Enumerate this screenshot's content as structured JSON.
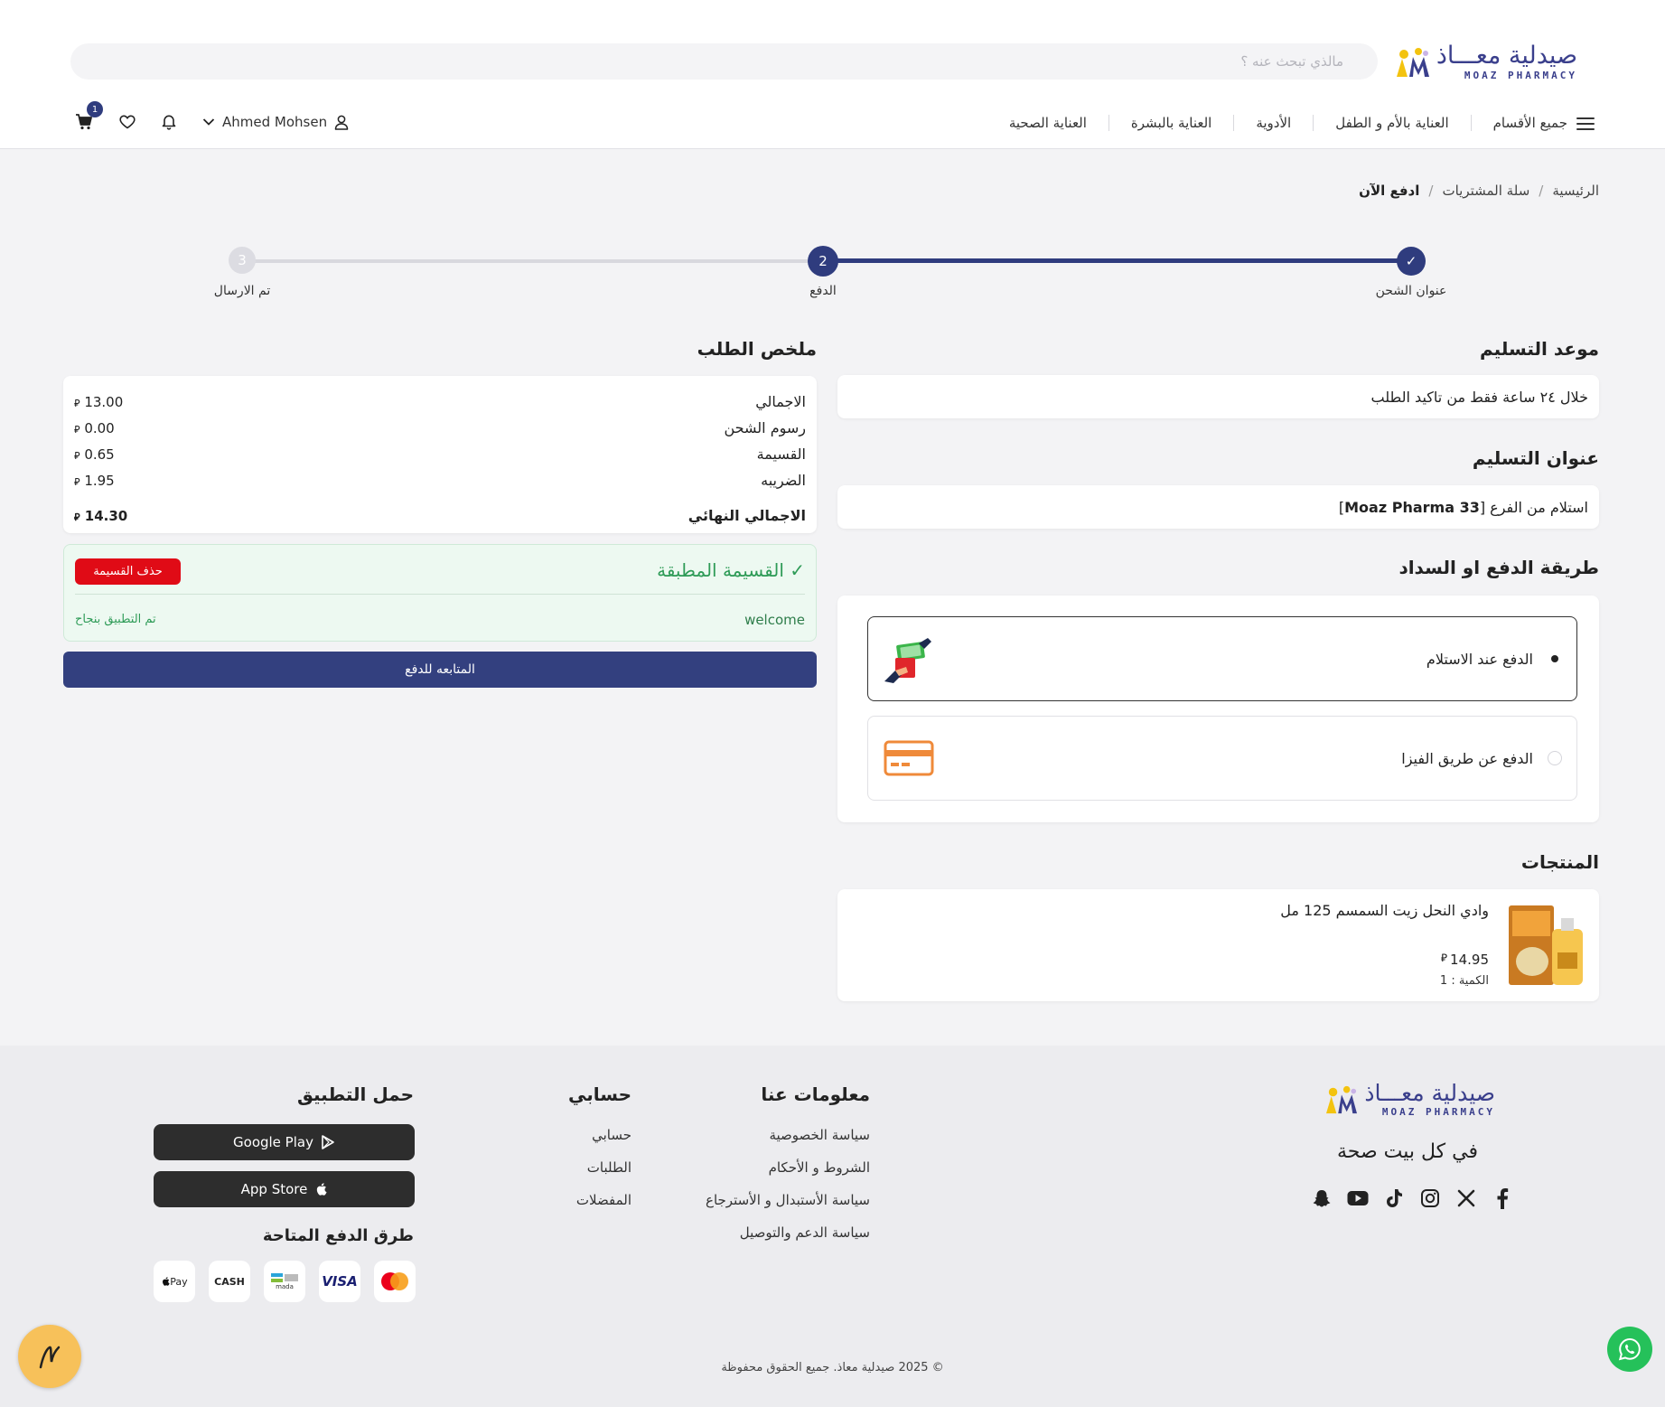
{
  "header": {
    "logo_ar": "صيدلية معـــاذ",
    "logo_en": "MOAZ PHARMACY",
    "search_placeholder": "مالذي تبحث عنه ؟",
    "nav": [
      "جميع الأقسام",
      "العناية بالأم و الطفل",
      "الأدوية",
      "العناية بالبشرة",
      "العناية الصحية"
    ],
    "user_name": "Ahmed Mohsen",
    "cart_count": "1"
  },
  "breadcrumb": [
    "الرئيسية",
    "سلة المشتريات",
    "ادفع الآن"
  ],
  "breadcrumb_sep": "/",
  "stepper": {
    "steps": [
      {
        "label": "عنوان الشحن",
        "marker": "✓",
        "state": "done"
      },
      {
        "label": "الدفع",
        "marker": "2",
        "state": "active"
      },
      {
        "label": "تم الارسال",
        "marker": "3",
        "state": "pending"
      }
    ]
  },
  "delivery_time": {
    "title": "موعد التسليم",
    "text": "خلال ٢٤ ساعة فقط من تاكيد الطلب"
  },
  "delivery_address": {
    "title": "عنوان التسليم",
    "text_prefix": "استلام من الفرع [",
    "branch": "Moaz Pharma 33",
    "text_suffix": "]"
  },
  "payment": {
    "title": "طريقة الدفع او السداد",
    "options": [
      {
        "label": "الدفع عند الاستلام",
        "selected": true,
        "icon": "cash-hand-icon"
      },
      {
        "label": "الدفع عن طريق الفيزا",
        "selected": false,
        "icon": "credit-card-icon"
      }
    ]
  },
  "products": {
    "title": "المنتجات",
    "items": [
      {
        "name": "وادي النحل زيت السمسم 125 مل",
        "price": "14.95",
        "qty_label": "الكمية : 1"
      }
    ]
  },
  "currency_symbol": "⃁",
  "summary": {
    "title": "ملخص الطلب",
    "rows": [
      {
        "label": "الاجمالي",
        "value": "13.00"
      },
      {
        "label": "رسوم الشحن",
        "value": "0.00"
      },
      {
        "label": "القسيمة",
        "value": "0.65"
      },
      {
        "label": "الضريبه",
        "value": "1.95"
      }
    ],
    "total_label": "الاجمالي النهائي",
    "total_value": "14.30"
  },
  "coupon": {
    "title": "✓ القسيمة المطبقة",
    "delete_label": "حذف القسيمة",
    "code": "welcome",
    "status": "تم التطبيق بنجاح"
  },
  "proceed_label": "المتابعه للدفع",
  "footer": {
    "tagline": "في كل بيت صحة",
    "about": {
      "title": "معلومات عنا",
      "links": [
        "سياسة الخصوصية",
        "الشروط و الأحكام",
        "سياسة الأستبدال و الأسترجاع",
        "سياسة الدعم والتوصيل"
      ]
    },
    "account": {
      "title": "حسابي",
      "links": [
        "حسابي",
        "الطلبات",
        "المفضلات"
      ]
    },
    "app": {
      "title": "حمل التطبيق",
      "google_play": "Google Play",
      "app_store": "App Store"
    },
    "payment_methods": {
      "title": "طرق الدفع المتاحة",
      "badges": [
        "Pay",
        "CASH",
        "mada",
        "VISA",
        "mastercard"
      ]
    },
    "copyright": "© 2025 صيدلية معاذ. جميع الحقوق محفوظة"
  },
  "colors": {
    "primary": "#2f3c7e",
    "accent_green": "#2e9b57",
    "danger": "#e00b16",
    "whatsapp": "#25c15a"
  }
}
